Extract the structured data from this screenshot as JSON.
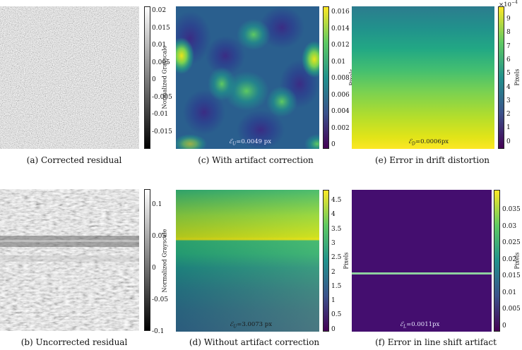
{
  "figure": {
    "panels": {
      "a": {
        "caption": "(a) Corrected residual",
        "colorbar_label": "Normalized Grayscale",
        "ticks": [
          "0.02",
          "0.015",
          "0.01",
          "0.005",
          "0",
          "-0.005",
          "-0.01",
          "-0.015"
        ]
      },
      "b": {
        "caption": "(b) Uncorrected residual",
        "colorbar_label": "Normalized Grayscale",
        "ticks": [
          "0.1",
          "0.05",
          "0",
          "-0.05",
          "-0.1"
        ]
      },
      "c": {
        "caption": "(c) With artifact correction",
        "colorbar_label": "Pixels",
        "annotation_symbol": "ℰ",
        "annotation_sub": "U",
        "annotation_value": "=0.0049 px",
        "ticks": [
          "0.016",
          "0.014",
          "0.012",
          "0.01",
          "0.008",
          "0.006",
          "0.004",
          "0.002",
          "0"
        ]
      },
      "d": {
        "caption": "(d) Without artifact correction",
        "colorbar_label": "Pixels",
        "annotation_symbol": "ℰ",
        "annotation_sub": "U",
        "annotation_value": "=3.0073 px",
        "ticks": [
          "4.5",
          "4",
          "3.5",
          "3",
          "2.5",
          "2",
          "1.5",
          "1",
          "0.5",
          "0"
        ]
      },
      "e": {
        "caption": "(e) Error in drift distortion",
        "colorbar_label": "Pixels",
        "annotation_symbol": "ℰ",
        "annotation_sub": "D",
        "annotation_value": "=0.0006px",
        "scale_base": "×10",
        "scale_exp": "−4",
        "ticks": [
          "9",
          "8",
          "7",
          "6",
          "5",
          "4",
          "3",
          "2",
          "1",
          "0"
        ]
      },
      "f": {
        "caption": "(f) Error in line shift artifact",
        "colorbar_label": "Pixels",
        "annotation_symbol": "ℰ",
        "annotation_sub": "L",
        "annotation_value": "=0.0011px",
        "ticks": [
          "0.035",
          "0.03",
          "0.025",
          "0.02",
          "0.015",
          "0.01",
          "0.005",
          "0"
        ]
      }
    }
  }
}
